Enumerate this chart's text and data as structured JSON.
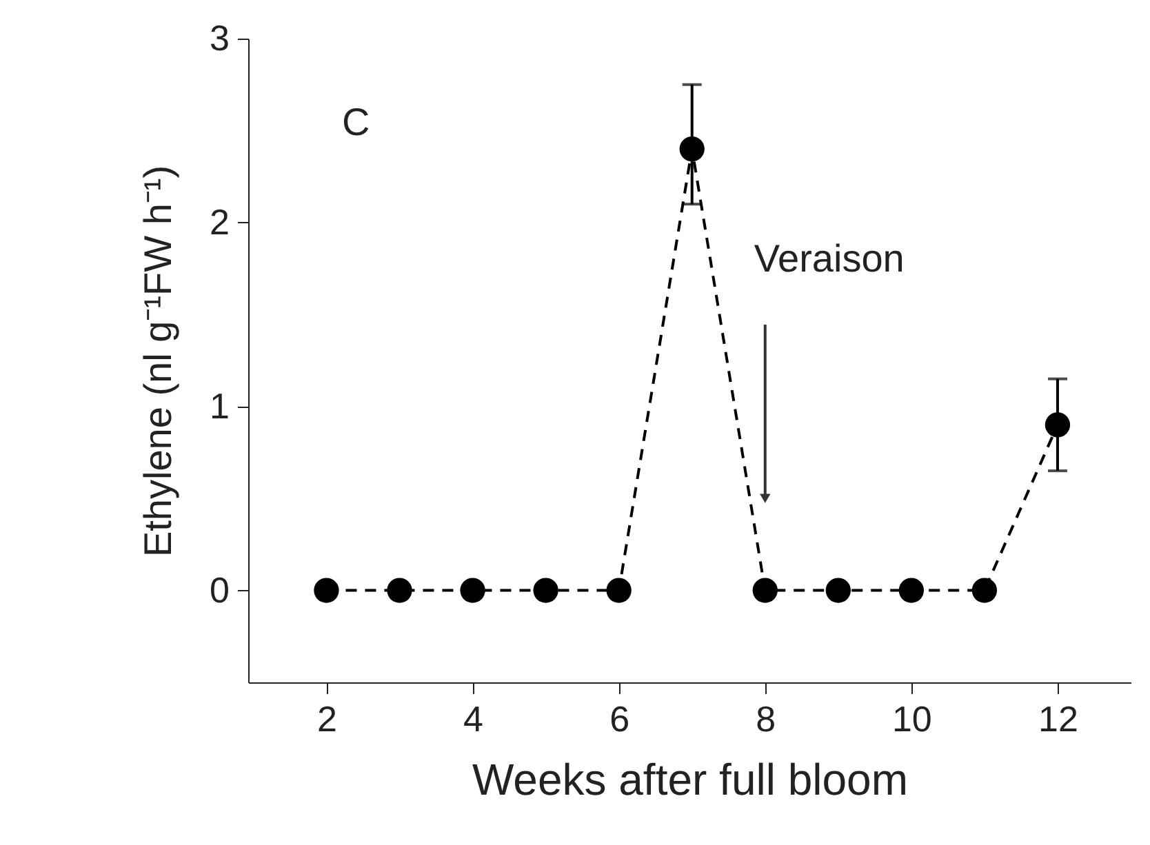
{
  "chart_data": {
    "type": "line",
    "x": [
      2,
      3,
      4,
      5,
      6,
      7,
      8,
      9,
      10,
      11,
      12
    ],
    "values": [
      0,
      0,
      0,
      0,
      0,
      2.4,
      0,
      0,
      0,
      0,
      0.9
    ],
    "errors": [
      null,
      null,
      null,
      null,
      null,
      [
        2.1,
        2.75
      ],
      null,
      null,
      null,
      null,
      [
        0.65,
        1.15
      ]
    ],
    "color": "#000000",
    "xlabel": "Weeks after full bloom",
    "ylabel": "Ethylene (nl g⁻¹FW h⁻¹)",
    "xlim": [
      0.93,
      13
    ],
    "ylim": [
      -0.5,
      3
    ],
    "xticks": [
      2,
      4,
      6,
      8,
      10,
      12
    ],
    "yticks": [
      0,
      1,
      2,
      3
    ],
    "marker": "circle",
    "line_style": "dashed",
    "grid": false,
    "annotations": [
      "C",
      {
        "text": "Veraison",
        "x": 8,
        "y": 0.5
      }
    ]
  }
}
